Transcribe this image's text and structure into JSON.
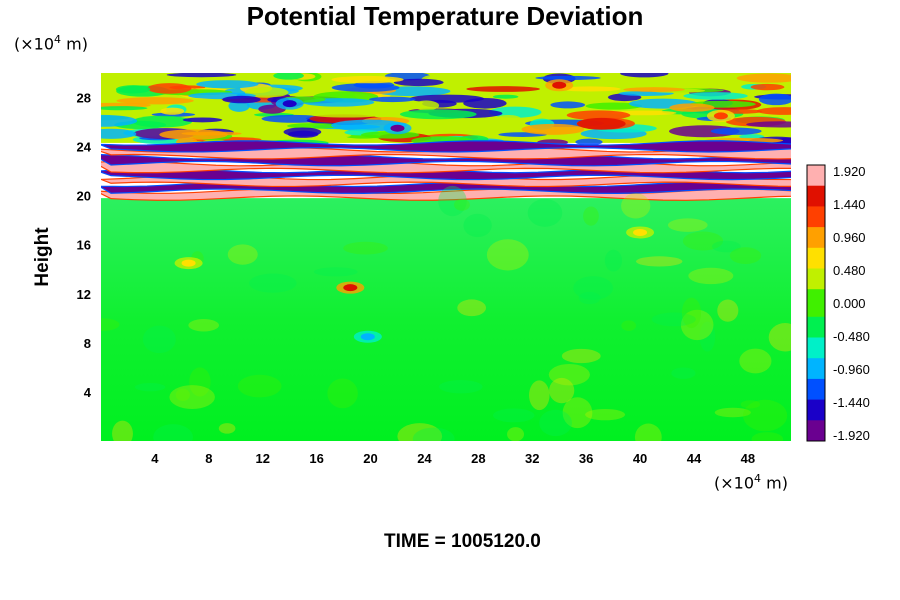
{
  "chart_data": {
    "type": "heatmap",
    "title": "Potential Temperature Deviation",
    "ylabel": "Height",
    "x_unit": {
      "prefix": "(×10",
      "exp": "4",
      "suffix": " m)"
    },
    "y_unit": {
      "prefix": "(×10",
      "exp": "4",
      "suffix": " m)"
    },
    "xlim": [
      0,
      51.2
    ],
    "ylim": [
      0,
      30
    ],
    "x_ticks": [
      4,
      8,
      12,
      16,
      20,
      24,
      28,
      32,
      36,
      40,
      44,
      48
    ],
    "y_ticks": [
      4,
      8,
      12,
      16,
      20,
      24,
      28
    ],
    "colorbar": {
      "min": -1.92,
      "max": 1.92,
      "labels": [
        "1.920",
        "1.440",
        "0.960",
        "0.480",
        "0.000",
        "-0.480",
        "-0.960",
        "-1.440",
        "-1.920"
      ],
      "colors": [
        "#6a0090",
        "#1a00c8",
        "#0050ff",
        "#00b4ff",
        "#00f0c8",
        "#00f050",
        "#40f000",
        "#c0f000",
        "#ffe000",
        "#ffa000",
        "#ff4000",
        "#e01000",
        "#ffb0b0"
      ]
    },
    "bands": [
      {
        "y_bottom": 19.8,
        "y_top": 24.3,
        "value_pattern": [
          1.9,
          -1.9,
          1.9,
          -1.9,
          1.9,
          -1.9,
          1.9,
          -1.9
        ],
        "note": "strongly layered stratospheric oscillation"
      },
      {
        "y_bottom": 24.3,
        "y_top": 30.0,
        "value_range": [
          -1.9,
          1.5
        ]
      },
      {
        "y_bottom": 0.0,
        "y_top": 19.8,
        "value_range": [
          -0.4,
          0.6
        ],
        "typical": 0.05
      }
    ],
    "features": [
      {
        "x": 18.5,
        "y": 12.5,
        "value": 1.5
      },
      {
        "x": 19.8,
        "y": 8.5,
        "value": -1.0
      },
      {
        "x": 6.5,
        "y": 14.5,
        "value": 0.6
      },
      {
        "x": 40.0,
        "y": 17.0,
        "value": 0.5
      },
      {
        "x": 34.0,
        "y": 29.0,
        "value": 1.6
      },
      {
        "x": 46.0,
        "y": 26.5,
        "value": 1.3
      },
      {
        "x": 14.0,
        "y": 27.5,
        "value": -1.6
      },
      {
        "x": 22.0,
        "y": 25.5,
        "value": -1.7
      }
    ]
  },
  "footer": {
    "time_label": "TIME = 1005120.0"
  }
}
